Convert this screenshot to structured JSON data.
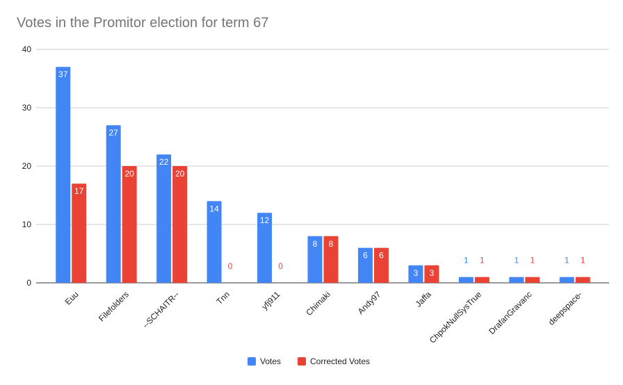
{
  "chart_data": {
    "type": "bar",
    "title": "Votes in the Promitor election for term 67",
    "categories": [
      "Euu",
      "Filefolders",
      "--SCHAITR--",
      "Tnn",
      "yfj911",
      "Chimaki",
      "Andy97",
      "Jaffa",
      "ChpokNullSysTrue",
      "DrafanGravanc",
      "deepspace-"
    ],
    "series": [
      {
        "name": "Votes",
        "color": "#4285f4",
        "values": [
          37,
          27,
          22,
          14,
          12,
          8,
          6,
          3,
          1,
          1,
          1
        ]
      },
      {
        "name": "Corrected Votes",
        "color": "#ea4335",
        "values": [
          17,
          20,
          20,
          0,
          0,
          8,
          6,
          3,
          1,
          1,
          1
        ]
      }
    ],
    "ylim": [
      0,
      40
    ],
    "yticks": [
      0,
      10,
      20,
      30,
      40
    ],
    "grid": true,
    "legend": "bottom",
    "xlabel": "",
    "ylabel": ""
  }
}
